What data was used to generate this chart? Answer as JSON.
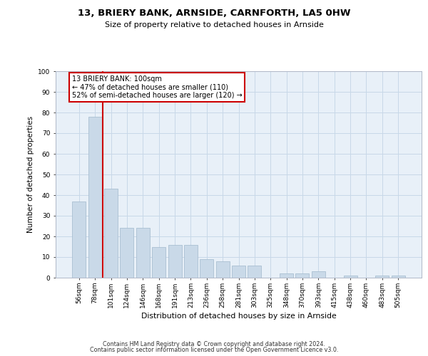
{
  "title": "13, BRIERY BANK, ARNSIDE, CARNFORTH, LA5 0HW",
  "subtitle": "Size of property relative to detached houses in Arnside",
  "xlabel": "Distribution of detached houses by size in Arnside",
  "ylabel": "Number of detached properties",
  "categories": [
    "56sqm",
    "78sqm",
    "101sqm",
    "124sqm",
    "146sqm",
    "168sqm",
    "191sqm",
    "213sqm",
    "236sqm",
    "258sqm",
    "281sqm",
    "303sqm",
    "325sqm",
    "348sqm",
    "370sqm",
    "393sqm",
    "415sqm",
    "438sqm",
    "460sqm",
    "483sqm",
    "505sqm"
  ],
  "values": [
    37,
    78,
    43,
    24,
    24,
    15,
    16,
    16,
    9,
    8,
    6,
    6,
    0,
    2,
    2,
    3,
    0,
    1,
    0,
    1,
    1
  ],
  "bar_color": "#c9d9e8",
  "bar_edge_color": "#a0b8cc",
  "vline_color": "#cc0000",
  "vline_pos": 1.5,
  "annotation_text": "13 BRIERY BANK: 100sqm\n← 47% of detached houses are smaller (110)\n52% of semi-detached houses are larger (120) →",
  "annotation_box_color": "#ffffff",
  "annotation_box_edge": "#cc0000",
  "ylim": [
    0,
    100
  ],
  "yticks": [
    0,
    10,
    20,
    30,
    40,
    50,
    60,
    70,
    80,
    90,
    100
  ],
  "grid_color": "#c8d8e8",
  "bg_color": "#e8f0f8",
  "footer_line1": "Contains HM Land Registry data © Crown copyright and database right 2024.",
  "footer_line2": "Contains public sector information licensed under the Open Government Licence v3.0."
}
